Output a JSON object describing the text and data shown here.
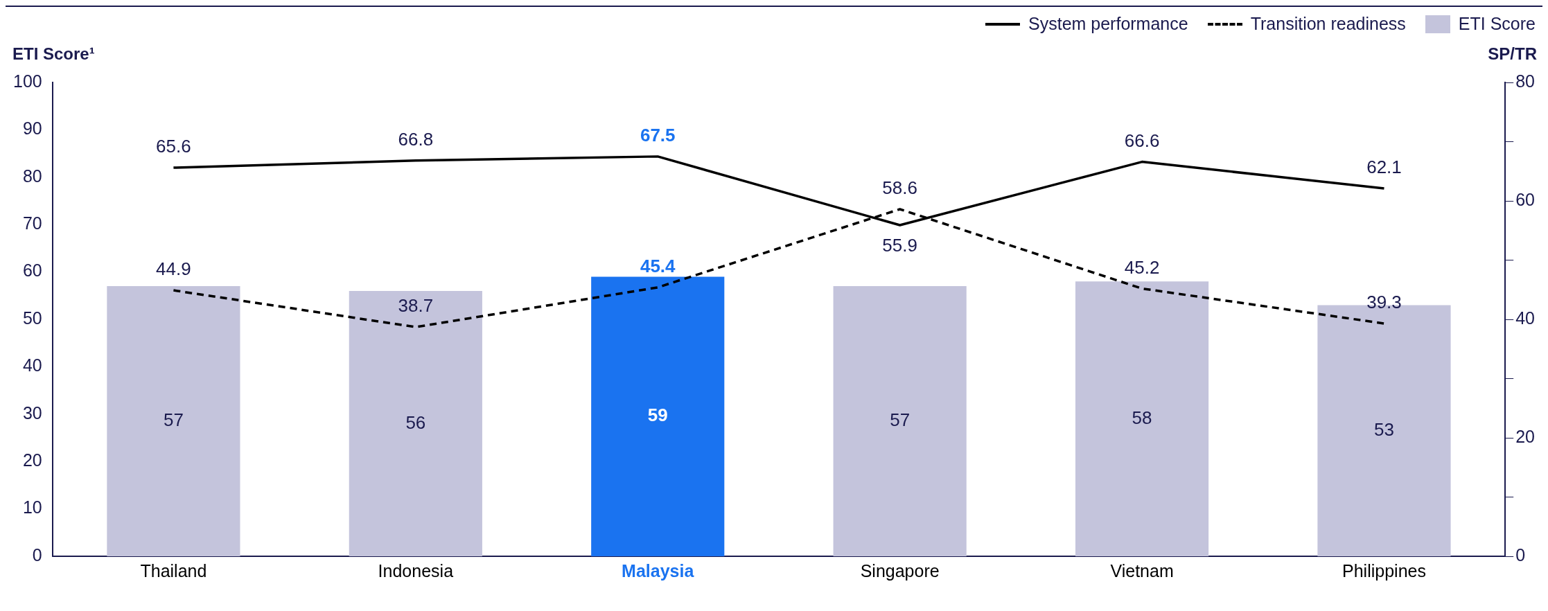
{
  "chart_data": {
    "type": "bar",
    "categories": [
      "Thailand",
      "Indonesia",
      "Malaysia",
      "Singapore",
      "Vietnam",
      "Philippines"
    ],
    "ylabel": "ETI Score¹",
    "y2label": "SP/TR",
    "ylim": [
      0,
      100
    ],
    "yticks": [
      0,
      10,
      20,
      30,
      40,
      50,
      60,
      70,
      80,
      90,
      100
    ],
    "y2lim": [
      0,
      80
    ],
    "y2ticks": [
      0,
      {
        "value": 10,
        "label": null
      },
      20,
      {
        "value": 30,
        "label": null
      },
      40,
      {
        "value": 50,
        "label": null
      },
      60,
      {
        "value": 70,
        "label": null
      },
      80
    ],
    "legend": "top right",
    "data_labels": true,
    "marker": "none",
    "grid": false,
    "series": [
      {
        "name": "System performance",
        "type": "line",
        "axis": "y2",
        "color": "#000000",
        "line_style": "solid",
        "values": [
          65.6,
          66.8,
          67.5,
          55.9,
          66.6,
          62.1
        ]
      },
      {
        "name": "Transition readiness",
        "type": "line",
        "axis": "y2",
        "color": "#000000",
        "line_style": "dashed",
        "values": [
          44.9,
          38.7,
          45.4,
          58.6,
          45.2,
          39.3
        ]
      },
      {
        "name": "ETI Score",
        "color": "#c4c4dc",
        "colors": [
          "#c4c4dc",
          "#c4c4dc",
          "#1a73f0",
          "#c4c4dc",
          "#c4c4dc",
          "#c4c4dc"
        ],
        "values": [
          57,
          56,
          59,
          57,
          58,
          53
        ]
      }
    ]
  }
}
